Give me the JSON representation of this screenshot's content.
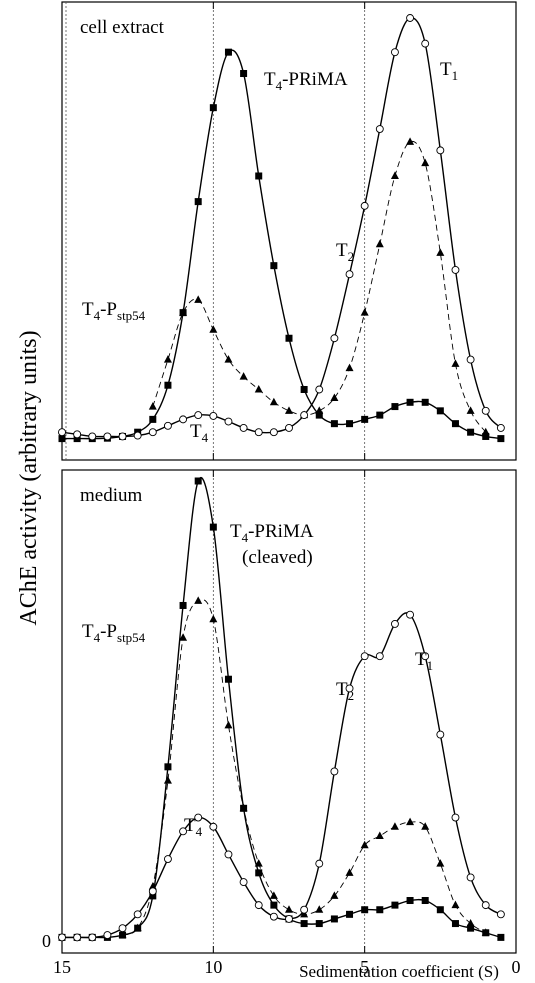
{
  "ylabel": "AChE activity (arbitrary units)",
  "xlabel": "Sedimentation coefficient (S)",
  "y_zero_label": "0",
  "chart_data": [
    {
      "type": "line",
      "panel_label": "cell extract",
      "xlim": [
        15,
        0
      ],
      "x_reversed": true,
      "ylim": [
        0,
        100
      ],
      "reference_lines_x": [
        15,
        10,
        5
      ],
      "series": [
        {
          "marker": "filled-square",
          "line": "solid",
          "x": [
            15,
            14.5,
            14,
            13.5,
            13,
            12.5,
            12,
            11.5,
            11,
            10.5,
            10,
            9.5,
            9,
            8.5,
            8,
            7.5,
            7,
            6.5,
            6,
            5.5,
            5,
            4.5,
            4,
            3.5,
            3,
            2.5,
            2,
            1.5,
            1,
            0.5
          ],
          "y": [
            1.5,
            1.5,
            1.5,
            1.6,
            2,
            3,
            6,
            14,
            31,
            57,
            79,
            92,
            87,
            63,
            42,
            25,
            13,
            7,
            5,
            5,
            6,
            7,
            9,
            10,
            10,
            8,
            5,
            3,
            2,
            1.5
          ]
        },
        {
          "marker": "filled-triangle",
          "line": "dashed",
          "x": [
            12,
            11.5,
            11,
            10.5,
            10,
            9.5,
            9,
            8.5,
            8,
            7.5,
            7,
            6.5,
            6,
            5.5,
            5,
            4.5,
            4,
            3.5,
            3,
            2.5,
            2,
            1.5,
            1
          ],
          "y": [
            9,
            20,
            31,
            34,
            27,
            20,
            16,
            13,
            10,
            8,
            7,
            8,
            11,
            18,
            31,
            47,
            63,
            71,
            66,
            45,
            19,
            8,
            3
          ]
        },
        {
          "marker": "open-circle",
          "line": "solid",
          "x": [
            15,
            14.5,
            14,
            13.5,
            13,
            12.5,
            12,
            11.5,
            11,
            10.5,
            10,
            9.5,
            9,
            8.5,
            8,
            7.5,
            7,
            6.5,
            6,
            5.5,
            5,
            4.5,
            4,
            3.5,
            3,
            2.5,
            2,
            1.5,
            1,
            0.5
          ],
          "y": [
            3,
            2.5,
            2,
            2,
            2,
            2.2,
            3,
            4.5,
            6,
            7,
            6.8,
            5.5,
            4,
            3,
            3,
            4,
            7,
            13,
            25,
            40,
            56,
            74,
            92,
            100,
            94,
            69,
            41,
            20,
            8,
            4
          ]
        }
      ],
      "annotations": [
        {
          "text": "T",
          "sub": "4",
          "rest": "-PRiMA"
        },
        {
          "text": "T",
          "sub": "1",
          "rest": ""
        },
        {
          "text": "T",
          "sub": "2",
          "rest": ""
        },
        {
          "text": "T",
          "sub": "4",
          "rest": "-P",
          "sub2": "stp54"
        },
        {
          "text": "T",
          "sub": "4",
          "rest": ""
        }
      ]
    },
    {
      "type": "line",
      "panel_label": "medium",
      "xlim": [
        15,
        0
      ],
      "x_reversed": true,
      "ylim": [
        0,
        100
      ],
      "reference_lines_x": [
        10,
        5
      ],
      "series": [
        {
          "marker": "filled-square",
          "line": "solid",
          "x": [
            15,
            14.5,
            14,
            13.5,
            13,
            12.5,
            12,
            11.5,
            11,
            10.5,
            10,
            9.5,
            9,
            8.5,
            8,
            7.5,
            7,
            6.5,
            6,
            5.5,
            5,
            4.5,
            4,
            3.5,
            3,
            2.5,
            2,
            1.5,
            1,
            0.5
          ],
          "y": [
            1,
            1,
            1,
            1,
            1.5,
            3,
            10,
            38,
            73,
            100,
            90,
            57,
            29,
            15,
            8,
            5,
            4,
            4,
            5,
            6,
            7,
            7,
            8,
            9,
            9,
            7,
            4,
            3,
            2,
            1
          ]
        },
        {
          "marker": "filled-triangle",
          "line": "dashed",
          "x": [
            13,
            12.5,
            12,
            11.5,
            11,
            10.5,
            10,
            9.5,
            9,
            8.5,
            8,
            7.5,
            7,
            6.5,
            6,
            5.5,
            5,
            4.5,
            4,
            3.5,
            3,
            2.5,
            2,
            1.5,
            1
          ],
          "y": [
            1.5,
            3,
            12,
            35,
            66,
            74,
            70,
            47,
            29,
            17,
            10,
            7,
            6,
            7,
            10,
            15,
            21,
            23,
            25,
            26,
            25,
            17,
            8,
            4,
            2
          ]
        },
        {
          "marker": "open-circle",
          "line": "solid",
          "x": [
            15,
            14.5,
            14,
            13.5,
            13,
            12.5,
            12,
            11.5,
            11,
            10.5,
            10,
            9.5,
            9,
            8.5,
            8,
            7.5,
            7,
            6.5,
            6,
            5.5,
            5,
            4.5,
            4,
            3.5,
            3,
            2.5,
            2,
            1.5,
            1,
            0.5
          ],
          "y": [
            1,
            1,
            1,
            1.5,
            3,
            6,
            11,
            18,
            24,
            27,
            25,
            19,
            13,
            8,
            5.5,
            5,
            7,
            17,
            37,
            55,
            62,
            62,
            69,
            71,
            62,
            45,
            27,
            14,
            8,
            6
          ]
        }
      ],
      "annotations": [
        {
          "text": "T",
          "sub": "4",
          "rest": "-PRiMA"
        },
        {
          "text": "(cleaved)"
        },
        {
          "text": "T",
          "sub": "1",
          "rest": ""
        },
        {
          "text": "T",
          "sub": "2",
          "rest": ""
        },
        {
          "text": "T",
          "sub": "4",
          "rest": "-P",
          "sub2": "stp54"
        },
        {
          "text": "T",
          "sub": "4",
          "rest": ""
        }
      ]
    }
  ],
  "x_ticks": [
    15,
    10,
    5,
    0
  ]
}
